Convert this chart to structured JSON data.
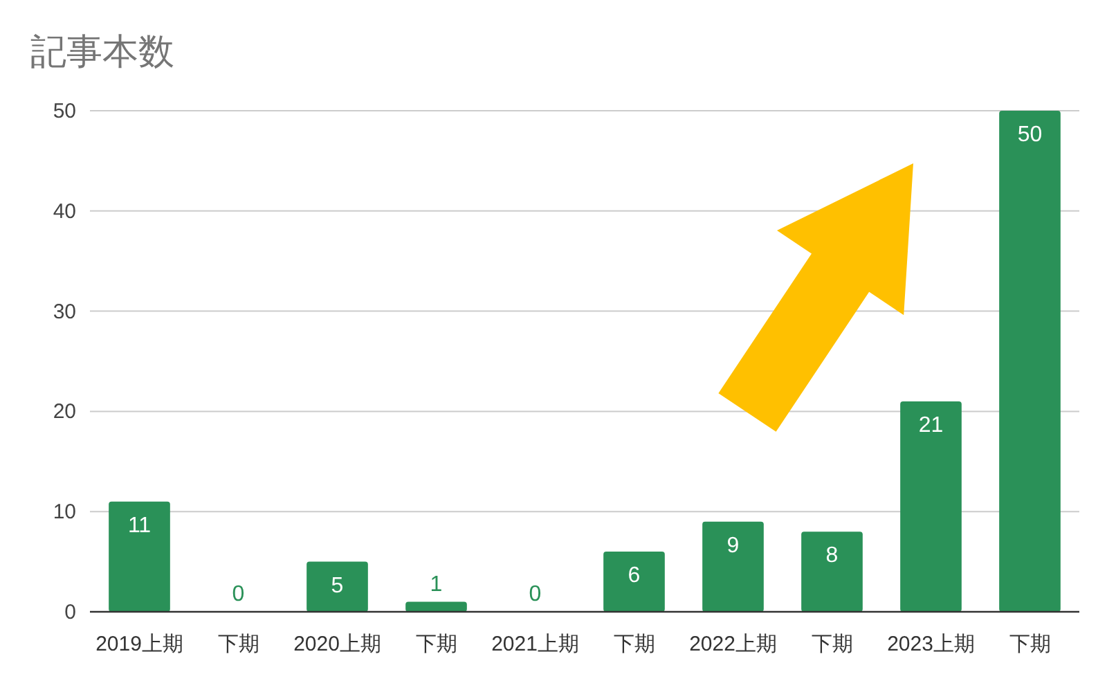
{
  "chart_data": {
    "type": "bar",
    "title": "記事本数",
    "categories": [
      "2019上期",
      "下期",
      "2020上期",
      "下期",
      "2021上期",
      "下期",
      "2022上期",
      "下期",
      "2023上期",
      "下期"
    ],
    "values": [
      11,
      0,
      5,
      1,
      0,
      6,
      9,
      8,
      21,
      50
    ],
    "color": "#2a9158",
    "ylim": [
      0,
      50
    ],
    "yticks": [
      0,
      10,
      20,
      30,
      40,
      50
    ],
    "grid": "y",
    "data_labels": true
  }
}
